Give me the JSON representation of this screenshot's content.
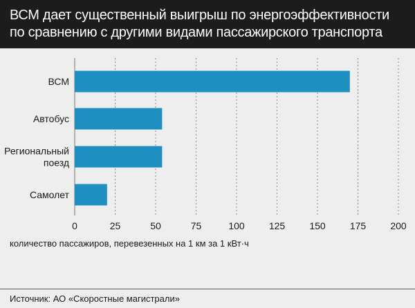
{
  "title": {
    "line1": "ВСМ дает существенный выигрыш по энергоэффективности",
    "line2": "по сравнению с другими видами пассажирского транспорта"
  },
  "source": "Источник: АО «Скоростные магистрали»",
  "colors": {
    "bar": "#1d8fc1",
    "title_bg": "#1c1c1c",
    "background": "#eeeeee",
    "grid": "#777777"
  },
  "chart_data": {
    "type": "bar",
    "orientation": "horizontal",
    "categories": [
      [
        "ВСМ"
      ],
      [
        "Автобус"
      ],
      [
        "Региональный",
        "поезд"
      ],
      [
        "Самолет"
      ]
    ],
    "values": [
      170,
      54,
      54,
      20
    ],
    "xlabel": "количество пассажиров, перевезенных на 1 км за 1 кВт·ч",
    "xlim": [
      0,
      200
    ],
    "xticks": [
      0,
      25,
      50,
      75,
      100,
      125,
      150,
      175,
      200
    ],
    "grid": "vertical dashed"
  }
}
